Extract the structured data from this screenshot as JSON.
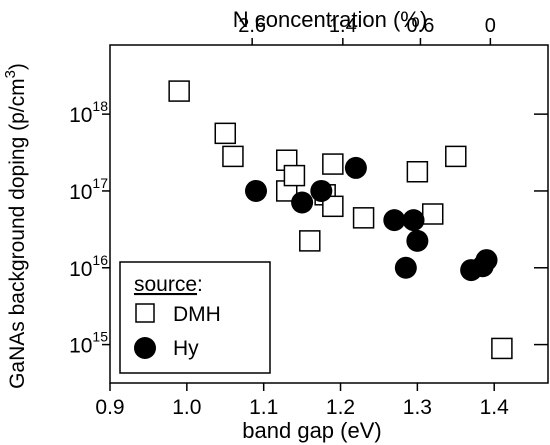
{
  "chart_data": {
    "type": "scatter",
    "xlabel": "band gap (eV)",
    "ylabel": "GaNAs background doping (p/cm",
    "ylabel_sup": "3",
    "ylabel_close": ")",
    "top_xlabel": "N concentration (%)",
    "xlim": [
      0.9,
      1.47
    ],
    "xticks": [
      {
        "value": 0.9,
        "label": "0.9"
      },
      {
        "value": 1.0,
        "label": "1.0"
      },
      {
        "value": 1.1,
        "label": "1.1"
      },
      {
        "value": 1.2,
        "label": "1.2"
      },
      {
        "value": 1.3,
        "label": "1.3"
      },
      {
        "value": 1.4,
        "label": "1.4"
      }
    ],
    "top_xticks": [
      {
        "at_band_gap": 1.085,
        "label": "2.6"
      },
      {
        "at_band_gap": 1.203,
        "label": "1.4"
      },
      {
        "at_band_gap": 1.304,
        "label": "0.6"
      },
      {
        "at_band_gap": 1.395,
        "label": "0"
      }
    ],
    "y_scale": "log",
    "ylim_log10": [
      14.5,
      18.9
    ],
    "yticks": [
      {
        "exp": 15,
        "base": "10",
        "sup": "15"
      },
      {
        "exp": 16,
        "base": "10",
        "sup": "16"
      },
      {
        "exp": 17,
        "base": "10",
        "sup": "17"
      },
      {
        "exp": 18,
        "base": "10",
        "sup": "18"
      }
    ],
    "legend": {
      "title": "source",
      "title_suffix": ":",
      "placement": "bottom-left"
    },
    "series": [
      {
        "name": "DMH",
        "marker": "open-square",
        "points": [
          {
            "x": 0.99,
            "y_log10": 18.3
          },
          {
            "x": 1.05,
            "y_log10": 17.75
          },
          {
            "x": 1.06,
            "y_log10": 17.45
          },
          {
            "x": 1.13,
            "y_log10": 17.4
          },
          {
            "x": 1.13,
            "y_log10": 17.0
          },
          {
            "x": 1.14,
            "y_log10": 17.2
          },
          {
            "x": 1.16,
            "y_log10": 16.35
          },
          {
            "x": 1.18,
            "y_log10": 16.95
          },
          {
            "x": 1.19,
            "y_log10": 16.8
          },
          {
            "x": 1.19,
            "y_log10": 17.35
          },
          {
            "x": 1.23,
            "y_log10": 16.65
          },
          {
            "x": 1.3,
            "y_log10": 17.25
          },
          {
            "x": 1.32,
            "y_log10": 16.7
          },
          {
            "x": 1.35,
            "y_log10": 17.45
          },
          {
            "x": 1.41,
            "y_log10": 14.95
          }
        ]
      },
      {
        "name": "Hy",
        "marker": "filled-circle",
        "points": [
          {
            "x": 1.09,
            "y_log10": 17.0
          },
          {
            "x": 1.15,
            "y_log10": 16.85
          },
          {
            "x": 1.175,
            "y_log10": 17.0
          },
          {
            "x": 1.22,
            "y_log10": 17.3
          },
          {
            "x": 1.27,
            "y_log10": 16.62
          },
          {
            "x": 1.285,
            "y_log10": 16.0
          },
          {
            "x": 1.295,
            "y_log10": 16.62
          },
          {
            "x": 1.3,
            "y_log10": 16.35
          },
          {
            "x": 1.37,
            "y_log10": 15.97
          },
          {
            "x": 1.385,
            "y_log10": 16.02
          },
          {
            "x": 1.39,
            "y_log10": 16.1
          }
        ]
      }
    ]
  }
}
